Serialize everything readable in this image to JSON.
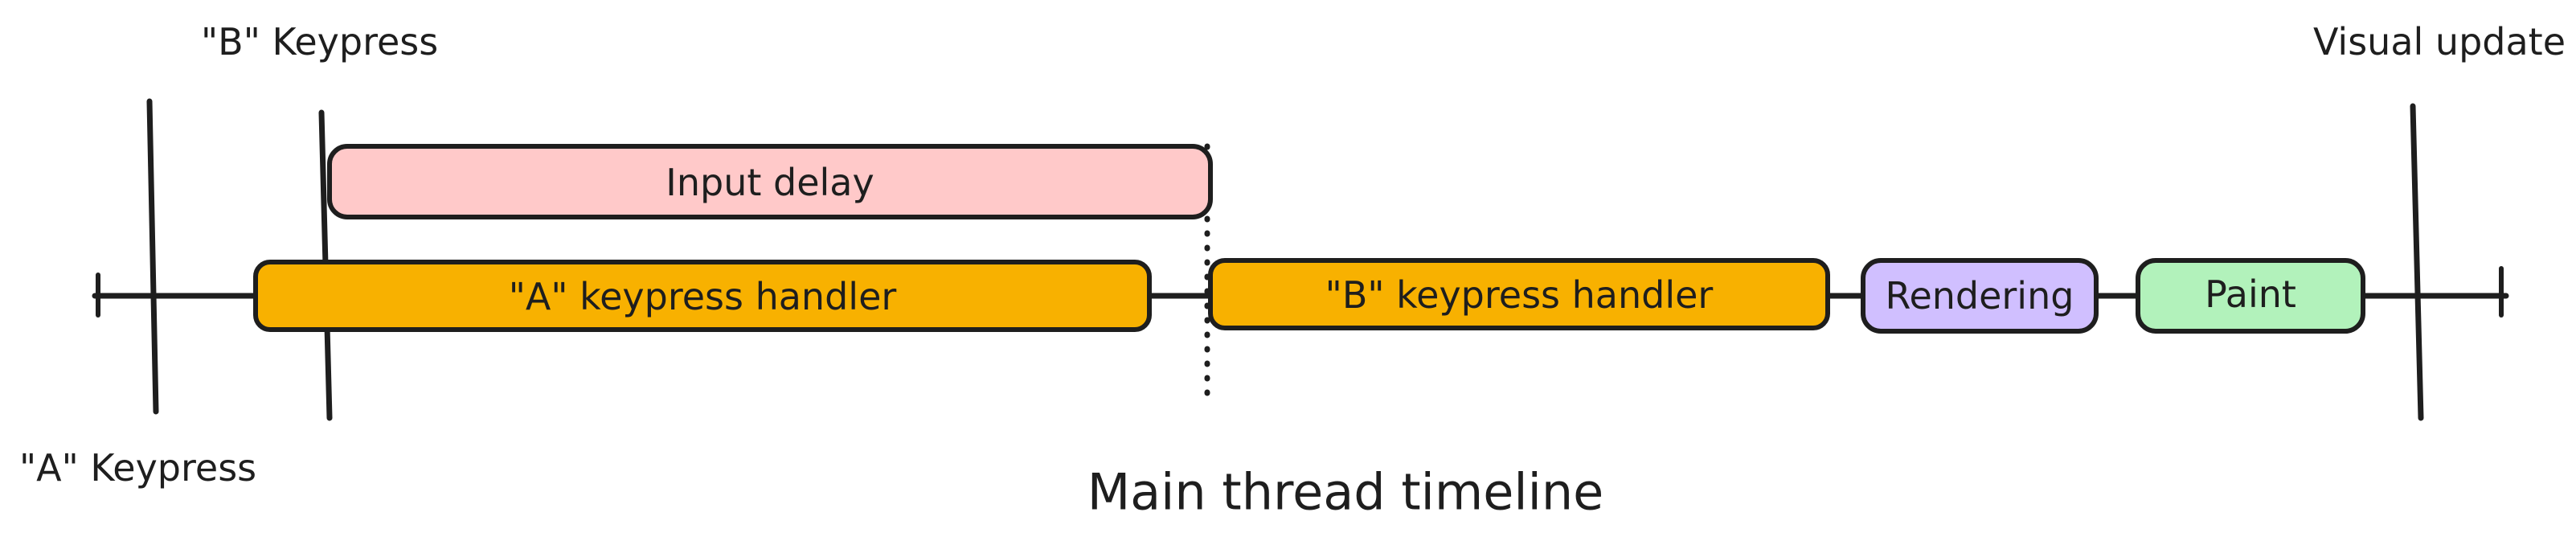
{
  "diagram": {
    "events": {
      "a_keypress": "\"A\" Keypress",
      "b_keypress": "\"B\" Keypress",
      "visual_update": "Visual update"
    },
    "boxes": {
      "input_delay": {
        "label": "Input delay",
        "fill": "#ffc9c9"
      },
      "a_handler": {
        "label": "\"A\" keypress handler",
        "fill": "#f8b100"
      },
      "b_handler": {
        "label": "\"B\" keypress handler",
        "fill": "#f8b100"
      },
      "rendering": {
        "label": "Rendering",
        "fill": "#d0bfff"
      },
      "paint": {
        "label": "Paint",
        "fill": "#b2f2bb"
      }
    },
    "caption": "Main thread timeline",
    "stroke_color": "#1e1e1e"
  }
}
